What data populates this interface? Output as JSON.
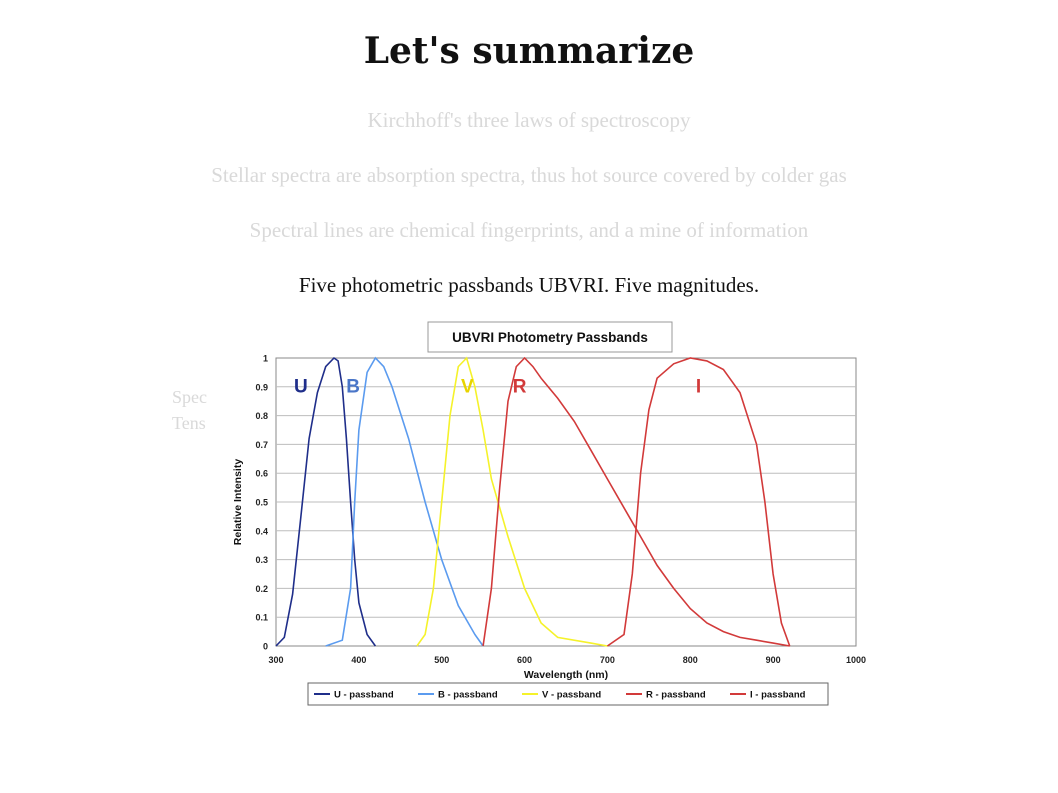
{
  "slide": {
    "title": "Let's summarize",
    "lines": [
      "Kirchhoff's three laws of spectroscopy",
      "Stellar spectra are absorption spectra, thus hot source covered by colder gas",
      "Spectral lines are chemical fingerprints, and a mine of information",
      "Five photometric passbands UBVRI. Five magnitudes."
    ],
    "side_fragments": [
      "Spec",
      "Tens"
    ]
  },
  "chart_data": {
    "type": "line",
    "title": "UBVRI Photometry Passbands",
    "xlabel": "Wavelength (nm)",
    "ylabel": "Relative Intensity",
    "xlim": [
      300,
      1000
    ],
    "ylim": [
      0,
      1
    ],
    "xticks": [
      300,
      400,
      500,
      600,
      700,
      800,
      900,
      1000
    ],
    "yticks": [
      0,
      0.1,
      0.2,
      0.3,
      0.4,
      0.5,
      0.6,
      0.7,
      0.8,
      0.9,
      1
    ],
    "grid": "horizontal",
    "legend_position": "bottom",
    "series": [
      {
        "name": "U - passband",
        "label": "U",
        "color": "#1f2e8a",
        "points": [
          [
            300,
            0
          ],
          [
            310,
            0.03
          ],
          [
            320,
            0.18
          ],
          [
            330,
            0.45
          ],
          [
            340,
            0.72
          ],
          [
            350,
            0.88
          ],
          [
            360,
            0.97
          ],
          [
            370,
            1.0
          ],
          [
            375,
            0.99
          ],
          [
            380,
            0.9
          ],
          [
            385,
            0.72
          ],
          [
            390,
            0.5
          ],
          [
            395,
            0.3
          ],
          [
            400,
            0.15
          ],
          [
            410,
            0.04
          ],
          [
            420,
            0.0
          ]
        ]
      },
      {
        "name": "B - passband",
        "label": "B",
        "color": "#5b9bef",
        "points": [
          [
            360,
            0
          ],
          [
            380,
            0.02
          ],
          [
            390,
            0.2
          ],
          [
            395,
            0.5
          ],
          [
            400,
            0.75
          ],
          [
            410,
            0.95
          ],
          [
            420,
            1.0
          ],
          [
            430,
            0.97
          ],
          [
            440,
            0.9
          ],
          [
            460,
            0.72
          ],
          [
            480,
            0.5
          ],
          [
            500,
            0.3
          ],
          [
            520,
            0.14
          ],
          [
            540,
            0.04
          ],
          [
            550,
            0.0
          ]
        ]
      },
      {
        "name": "V - passband",
        "label": "V",
        "color": "#f5f22a",
        "points": [
          [
            470,
            0
          ],
          [
            480,
            0.04
          ],
          [
            490,
            0.2
          ],
          [
            500,
            0.5
          ],
          [
            510,
            0.8
          ],
          [
            520,
            0.97
          ],
          [
            530,
            1.0
          ],
          [
            540,
            0.9
          ],
          [
            550,
            0.75
          ],
          [
            560,
            0.58
          ],
          [
            580,
            0.38
          ],
          [
            600,
            0.2
          ],
          [
            620,
            0.08
          ],
          [
            640,
            0.03
          ],
          [
            680,
            0.01
          ],
          [
            700,
            0.0
          ]
        ]
      },
      {
        "name": "R - passband",
        "label": "R",
        "color": "#d23a3a",
        "points": [
          [
            550,
            0
          ],
          [
            560,
            0.2
          ],
          [
            570,
            0.55
          ],
          [
            580,
            0.85
          ],
          [
            590,
            0.97
          ],
          [
            600,
            1.0
          ],
          [
            610,
            0.97
          ],
          [
            620,
            0.93
          ],
          [
            640,
            0.86
          ],
          [
            660,
            0.78
          ],
          [
            680,
            0.68
          ],
          [
            700,
            0.58
          ],
          [
            720,
            0.48
          ],
          [
            740,
            0.38
          ],
          [
            760,
            0.28
          ],
          [
            780,
            0.2
          ],
          [
            800,
            0.13
          ],
          [
            820,
            0.08
          ],
          [
            840,
            0.05
          ],
          [
            860,
            0.03
          ],
          [
            880,
            0.02
          ],
          [
            900,
            0.01
          ],
          [
            920,
            0.0
          ]
        ]
      },
      {
        "name": "I - passband",
        "label": "I",
        "color": "#d23a3a",
        "points": [
          [
            700,
            0
          ],
          [
            720,
            0.04
          ],
          [
            730,
            0.25
          ],
          [
            740,
            0.6
          ],
          [
            750,
            0.82
          ],
          [
            760,
            0.93
          ],
          [
            780,
            0.98
          ],
          [
            800,
            1.0
          ],
          [
            820,
            0.99
          ],
          [
            840,
            0.96
          ],
          [
            860,
            0.88
          ],
          [
            880,
            0.7
          ],
          [
            890,
            0.5
          ],
          [
            900,
            0.25
          ],
          [
            910,
            0.08
          ],
          [
            920,
            0.0
          ]
        ]
      }
    ]
  }
}
